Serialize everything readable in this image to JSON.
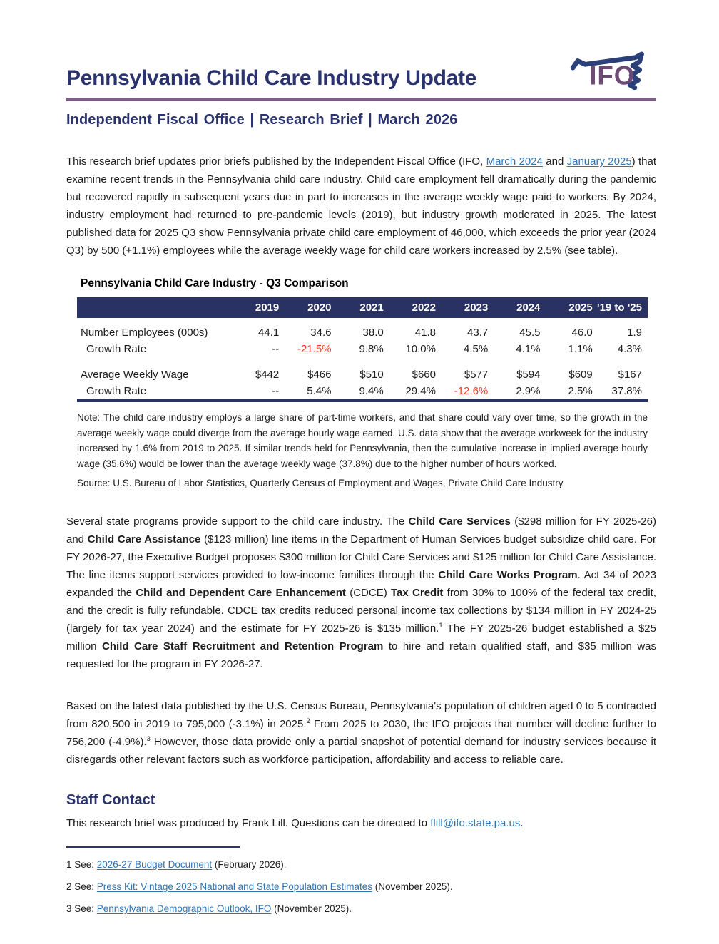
{
  "header": {
    "title": "Pennsylvania Child Care Industry Update",
    "subtitle": "Independent Fiscal Office  |  Research Brief  |  March 2026",
    "logo_text": "IFO"
  },
  "colors": {
    "navy": "#2B336E",
    "table_header_bg": "#2A3263",
    "purple_rule": "#7C5F87",
    "logo_purple": "#6C4A75",
    "negative_red": "#FB3A22",
    "link_blue": "#2E75B6"
  },
  "intro": {
    "segments": [
      {
        "t": "This research brief updates prior briefs published by the Independent Fiscal Office (IFO, "
      },
      {
        "t": "March 2024",
        "l": true,
        "n": "link-march-2024"
      },
      {
        "t": " and "
      },
      {
        "t": "January 2025",
        "l": true,
        "n": "link-january-2025"
      },
      {
        "t": ") that examine recent trends in the Pennsylvania child care industry. Child care employment fell dramatically during the pandemic but recovered rapidly in subsequent years due in part to increases in the average weekly wage paid to workers. By 2024, industry employment had returned to pre-pandemic levels (2019), but industry growth moderated in 2025. The latest published data for 2025 Q3 show Pennsylvania private child care employment of 46,000, which exceeds the prior year (2024 Q3) by 500 (+1.1%) employees while the average weekly wage for child care workers increased by 2.5% (see table)."
      }
    ]
  },
  "table": {
    "title": "Pennsylvania Child Care Industry - Q3 Comparison",
    "columns": [
      "2019",
      "2020",
      "2021",
      "2022",
      "2023",
      "2024",
      "2025",
      "'19 to '25"
    ],
    "rows": [
      {
        "label": "Number Employees (000s)",
        "values": [
          "44.1",
          "34.6",
          "38.0",
          "41.8",
          "43.7",
          "45.5",
          "46.0",
          "1.9"
        ],
        "red": []
      },
      {
        "label": "Growth Rate",
        "indent": true,
        "values": [
          "--",
          "-21.5%",
          "9.8%",
          "10.0%",
          "4.5%",
          "4.1%",
          "1.1%",
          "4.3%"
        ],
        "red": [
          1
        ]
      },
      {
        "spacer": true
      },
      {
        "label": "Average Weekly Wage",
        "values": [
          "$442",
          "$466",
          "$510",
          "$660",
          "$577",
          "$594",
          "$609",
          "$167"
        ],
        "red": []
      },
      {
        "label": "Growth Rate",
        "indent": true,
        "values": [
          "--",
          "5.4%",
          "9.4%",
          "29.4%",
          "-12.6%",
          "2.9%",
          "2.5%",
          "37.8%"
        ],
        "red": [
          4
        ]
      }
    ],
    "note": "Note: The child care industry employs a large share of part-time workers, and that share could vary over time, so the growth in the average weekly wage could diverge from the average hourly wage earned. U.S. data show that the average workweek for the industry increased by 1.6% from 2019 to 2025. If similar trends held for Pennsylvania, then the cumulative increase in implied average hourly wage (35.6%) would be lower than the average weekly wage (37.8%) due to the higher number of hours worked.",
    "source": "Source: U.S. Bureau of Labor Statistics, Quarterly Census of Employment and Wages, Private Child Care Industry."
  },
  "paragraphs": {
    "programs": {
      "segments": [
        {
          "t": "Several state programs provide support to the child care industry. The "
        },
        {
          "t": "Child Care Services",
          "b": true
        },
        {
          "t": " ($298 million for FY 2025-26) and "
        },
        {
          "t": "Child Care Assistance",
          "b": true
        },
        {
          "t": " ($123 million) line items in the Department of Human Services budget subsidize child care. For FY 2026-27, the Executive Budget proposes $300 million for Child Care Services and $125 million for Child Care Assistance. The line items support services provided to low-income families through the "
        },
        {
          "t": "Child Care Works Program",
          "b": true
        },
        {
          "t": ". Act 34 of 2023 expanded the "
        },
        {
          "t": "Child and Dependent Care Enhancement",
          "b": true
        },
        {
          "t": " (CDCE) "
        },
        {
          "t": "Tax Credit",
          "b": true
        },
        {
          "t": " from 30% to 100% of the federal tax credit, and the credit is fully refundable. CDCE tax credits reduced personal income tax collections by $134 million in FY 2024-25 (largely for tax year 2024) and the estimate for FY 2025-26 is $135 million."
        },
        {
          "t": "1",
          "sup": true
        },
        {
          "t": " The FY 2025-26 budget established a $25 million "
        },
        {
          "t": "Child Care Staff Recruitment and Retention Program",
          "b": true
        },
        {
          "t": " to hire and retain qualified staff, and $35 million was requested for the program in FY 2026-27."
        }
      ]
    },
    "population": {
      "segments": [
        {
          "t": "Based on the latest data published by the U.S. Census Bureau, Pennsylvania's population of children aged 0 to 5 contracted from 820,500 in 2019 to 795,000 (-3.1%) in 2025."
        },
        {
          "t": "2",
          "sup": true
        },
        {
          "t": " From 2025 to 2030, the IFO projects that number will decline further to 756,200 (-4.9%)."
        },
        {
          "t": "3",
          "sup": true
        },
        {
          "t": " However, those data provide only a partial snapshot of potential demand for industry services because it disregards other relevant factors such as workforce participation, affordability and access to reliable care."
        }
      ]
    }
  },
  "staff_contact": {
    "heading": "Staff Contact",
    "segments": [
      {
        "t": "This research brief was produced by Frank Lill. Questions can be directed to "
      },
      {
        "t": "flill@ifo.state.pa.us",
        "l": true,
        "n": "link-email"
      },
      {
        "t": "."
      }
    ]
  },
  "footnotes": [
    {
      "segments": [
        {
          "t": "1 See: "
        },
        {
          "t": "2026-27 Budget Document",
          "l": true,
          "n": "link-budget-document"
        },
        {
          "t": " (February 2026)."
        }
      ]
    },
    {
      "segments": [
        {
          "t": "2 See: "
        },
        {
          "t": "Press Kit: Vintage 2025 National and State Population Estimates",
          "l": true,
          "n": "link-press-kit"
        },
        {
          "t": " (November 2025)."
        }
      ]
    },
    {
      "segments": [
        {
          "t": "3 See: "
        },
        {
          "t": "Pennsylvania Demographic Outlook, IFO",
          "l": true,
          "n": "link-demographic-outlook"
        },
        {
          "t": " (November 2025)."
        }
      ]
    }
  ]
}
